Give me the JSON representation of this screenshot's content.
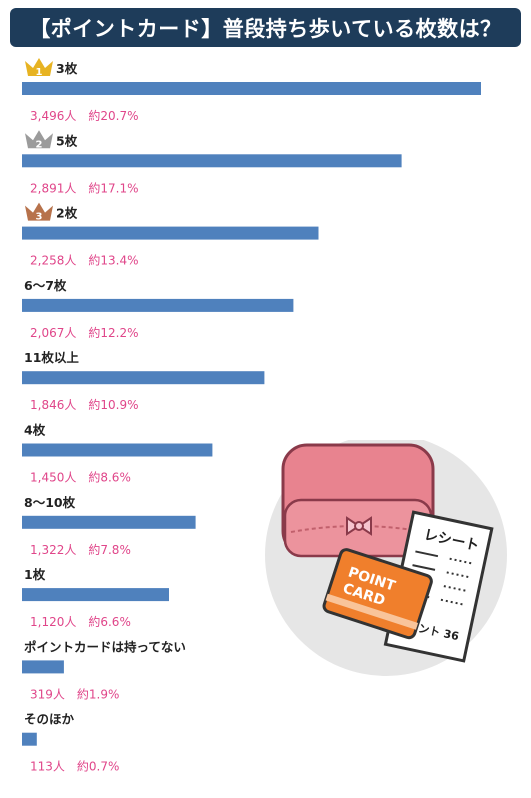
{
  "title": "【ポイントカード】普段持ち歩いている枚数は？",
  "colors": {
    "bar": "#4f81bd",
    "title_bg": "#1e3c5a",
    "value_text": "#e0468a",
    "crown_gold": "#e7b322",
    "crown_silver": "#9b9b9b",
    "crown_bronze": "#b7724b"
  },
  "chart_data": {
    "type": "bar",
    "orientation": "horizontal",
    "title": "【ポイントカード】普段持ち歩いている枚数は？",
    "categories": [
      "3枚",
      "5枚",
      "2枚",
      "6〜7枚",
      "11枚以上",
      "4枚",
      "8〜10枚",
      "1枚",
      "ポイントカードは持ってない",
      "そのほか"
    ],
    "values": [
      3496,
      2891,
      2258,
      2067,
      1846,
      1450,
      1322,
      1120,
      319,
      113
    ],
    "percent": [
      20.7,
      17.1,
      13.4,
      12.2,
      10.9,
      8.6,
      7.8,
      6.6,
      1.9,
      0.7
    ],
    "value_labels": [
      "3,496人　約20.7%",
      "2,891人　約17.1%",
      "2,258人　約13.4%",
      "2,067人　約12.2%",
      "1,846人　約10.9%",
      "1,450人　約8.6%",
      "1,322人　約7.8%",
      "1,120人　約6.6%",
      "319人　約1.9%",
      "113人　約0.7%"
    ],
    "rank_badges": [
      "1",
      "2",
      "3"
    ],
    "xlim": [
      0,
      3496
    ]
  },
  "illustration": {
    "receipt_title": "レシート",
    "receipt_line": "ポイント 36",
    "card_text_1": "POINT",
    "card_text_2": "CARD"
  }
}
